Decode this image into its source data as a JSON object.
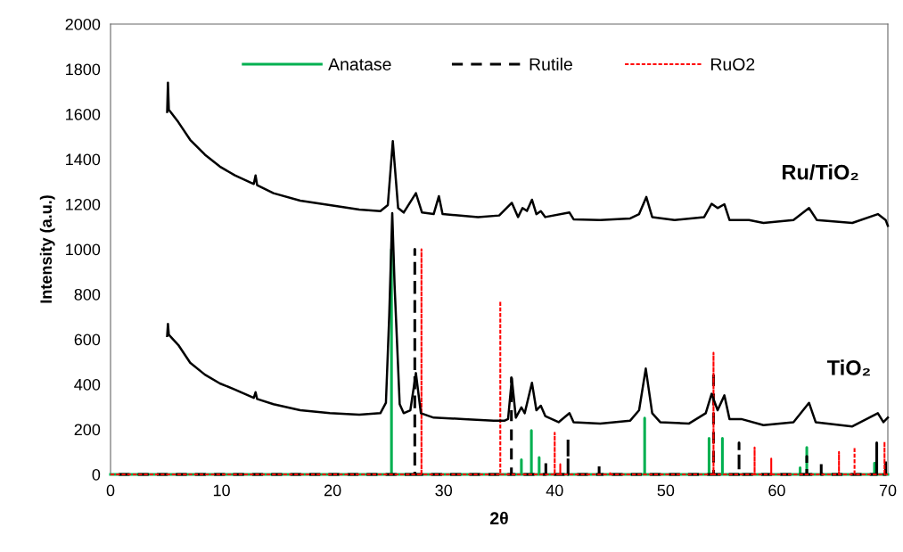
{
  "chart_data": {
    "type": "line",
    "xlabel": "2θ",
    "ylabel": "Intensity (a.u.)",
    "xlim": [
      0,
      70
    ],
    "xticks": [
      0,
      10,
      20,
      30,
      40,
      50,
      60,
      70
    ],
    "ylim": [
      0,
      2000
    ],
    "yticks": [
      0,
      200,
      400,
      600,
      800,
      1000,
      1200,
      1400,
      1600,
      1800,
      2000
    ],
    "grid": false,
    "legend": "top",
    "marker": "none",
    "series": [
      {
        "name": "Anatase",
        "color": "#00b050",
        "line_style": "solid",
        "x": [
          0,
          25.3,
          25.3,
          25.3,
          37.0,
          37.0,
          37.0,
          37.9,
          37.9,
          37.9,
          38.6,
          38.6,
          38.6,
          48.1,
          48.1,
          48.1,
          53.9,
          53.9,
          53.9,
          55.1,
          55.1,
          55.1,
          62.1,
          62.1,
          62.1,
          62.7,
          62.7,
          62.7,
          68.8,
          68.8,
          68.8,
          70
        ],
        "values": [
          0,
          0,
          1000,
          0,
          0,
          65,
          0,
          0,
          195,
          0,
          0,
          75,
          0,
          0,
          250,
          0,
          0,
          160,
          0,
          0,
          160,
          0,
          0,
          30,
          0,
          0,
          120,
          0,
          0,
          50,
          0,
          0
        ]
      },
      {
        "name": "Rutile",
        "color": "#000000",
        "line_style": "dashed",
        "x": [
          0,
          27.4,
          27.4,
          27.4,
          36.1,
          36.1,
          36.1,
          39.2,
          39.2,
          39.2,
          41.2,
          41.2,
          41.2,
          44.0,
          44.0,
          44.0,
          54.3,
          54.3,
          54.3,
          56.6,
          56.6,
          56.6,
          62.7,
          62.7,
          62.7,
          64.0,
          64.0,
          64.0,
          69.0,
          69.0,
          69.0,
          69.8,
          69.8,
          69.8,
          70
        ],
        "values": [
          0,
          0,
          1000,
          0,
          0,
          430,
          0,
          0,
          60,
          0,
          0,
          160,
          0,
          0,
          50,
          0,
          0,
          460,
          0,
          0,
          140,
          0,
          0,
          80,
          0,
          0,
          60,
          0,
          0,
          140,
          0,
          0,
          65,
          0,
          0
        ]
      },
      {
        "name": "RuO2",
        "color": "#ff0000",
        "line_style": "dotted",
        "x": [
          0,
          28.0,
          28.0,
          28.0,
          35.1,
          35.1,
          35.1,
          40.0,
          40.0,
          40.0,
          40.5,
          40.5,
          40.5,
          45.0,
          45.0,
          45.0,
          54.3,
          54.3,
          54.3,
          58.0,
          58.0,
          58.0,
          59.5,
          59.5,
          59.5,
          65.6,
          65.6,
          65.6,
          67.0,
          67.0,
          67.0,
          69.7,
          69.7,
          69.7,
          70
        ],
        "values": [
          0,
          0,
          1000,
          0,
          0,
          770,
          0,
          0,
          185,
          0,
          0,
          45,
          0,
          0,
          10,
          0,
          0,
          540,
          0,
          0,
          120,
          0,
          0,
          70,
          0,
          0,
          100,
          0,
          0,
          120,
          0,
          0,
          145,
          0,
          0
        ]
      },
      {
        "color": "#000000",
        "line_style": "solid",
        "x": [
          5.1,
          5.17,
          5.25,
          6.1,
          7.17,
          8.5,
          9.85,
          11.2,
          12.9,
          13.06,
          13.2,
          14.67,
          17.08,
          19.75,
          22.4,
          24.3,
          24.8,
          25.1,
          25.37,
          25.58,
          26.04,
          26.4,
          27.0,
          27.5,
          27.95,
          29.1,
          31.8,
          34.5,
          35.5,
          35.8,
          36.14,
          36.5,
          37.0,
          37.3,
          37.95,
          38.35,
          38.75,
          39.15,
          40.35,
          41.33,
          41.7,
          44.1,
          46.8,
          47.6,
          48.2,
          48.78,
          49.5,
          52.1,
          53.6,
          54.13,
          54.67,
          55.28,
          55.74,
          56.8,
          58.8,
          61.5,
          62.9,
          63.5,
          66.8,
          69.1,
          69.6,
          70
        ],
        "values": [
          615,
          668,
          620,
          575,
          496,
          443,
          404,
          377,
          340,
          365,
          335,
          312,
          285,
          272,
          265,
          272,
          318,
          708,
          1160,
          840,
          312,
          272,
          285,
          450,
          272,
          252,
          246,
          239,
          239,
          246,
          425,
          252,
          298,
          272,
          407,
          285,
          305,
          259,
          232,
          272,
          232,
          226,
          239,
          285,
          470,
          272,
          232,
          226,
          272,
          358,
          285,
          351,
          246,
          246,
          219,
          232,
          318,
          232,
          213,
          272,
          232,
          252
        ]
      },
      {
        "color": "#000000",
        "line_style": "solid",
        "x": [
          5.1,
          5.17,
          5.25,
          6.1,
          7.17,
          8.5,
          9.85,
          11.2,
          12.9,
          13.06,
          13.2,
          14.67,
          17.08,
          19.75,
          22.4,
          24.3,
          24.97,
          25.42,
          25.9,
          26.4,
          27.5,
          28.05,
          29.1,
          29.57,
          29.9,
          33.1,
          35.0,
          36.14,
          36.7,
          37.1,
          37.5,
          37.95,
          38.35,
          38.75,
          39.15,
          41.33,
          41.7,
          44.1,
          46.8,
          47.6,
          48.25,
          48.78,
          50.8,
          53.46,
          54.13,
          54.67,
          55.28,
          55.74,
          57.5,
          58.8,
          61.5,
          62.9,
          63.6,
          66.8,
          69.1,
          69.8,
          70
        ],
        "values": [
          1610,
          1740,
          1620,
          1565,
          1486,
          1420,
          1367,
          1328,
          1290,
          1328,
          1285,
          1249,
          1216,
          1196,
          1176,
          1169,
          1196,
          1480,
          1183,
          1163,
          1249,
          1163,
          1156,
          1236,
          1156,
          1143,
          1150,
          1206,
          1143,
          1183,
          1170,
          1220,
          1156,
          1169,
          1143,
          1163,
          1133,
          1130,
          1137,
          1156,
          1232,
          1143,
          1130,
          1143,
          1202,
          1183,
          1200,
          1130,
          1130,
          1117,
          1130,
          1183,
          1130,
          1117,
          1156,
          1130,
          1104
        ]
      }
    ],
    "annotations": [
      "Ru/TiO₂",
      "TiO₂"
    ]
  }
}
